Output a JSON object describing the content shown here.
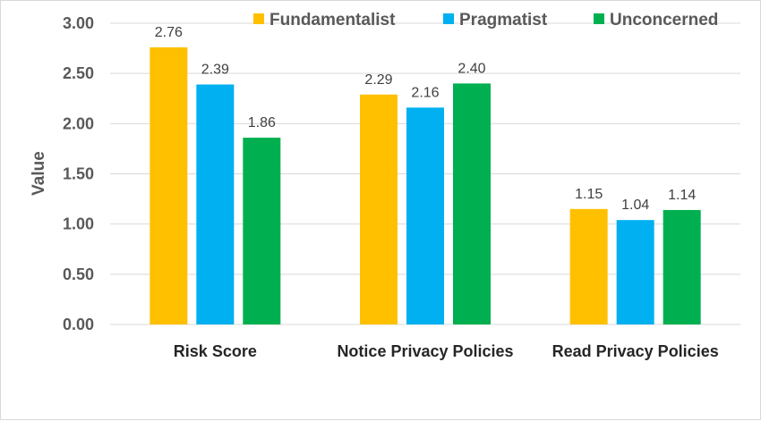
{
  "chart_data": {
    "type": "bar",
    "title": "",
    "xlabel": "",
    "ylabel": "Value",
    "ylim": [
      0,
      3
    ],
    "yticks": [
      "0.00",
      "0.50",
      "1.00",
      "1.50",
      "2.00",
      "2.50",
      "3.00"
    ],
    "categories": [
      "Risk Score",
      "Notice Privacy Policies",
      "Read Privacy Policies"
    ],
    "series": [
      {
        "name": "Fundamentalist",
        "color": "#ffc000",
        "values": [
          2.76,
          2.29,
          1.15
        ],
        "labels": [
          "2.76",
          "2.29",
          "1.15"
        ]
      },
      {
        "name": "Pragmatist",
        "color": "#00b0f0",
        "values": [
          2.39,
          2.16,
          1.04
        ],
        "labels": [
          "2.39",
          "2.16",
          "1.04"
        ]
      },
      {
        "name": "Unconcerned",
        "color": "#00b050",
        "values": [
          1.86,
          2.4,
          1.14
        ],
        "labels": [
          "1.86",
          "2.40",
          "1.14"
        ]
      }
    ],
    "grid": true,
    "legend_position": "top-right",
    "gridline_color": "#d9d9d9"
  }
}
